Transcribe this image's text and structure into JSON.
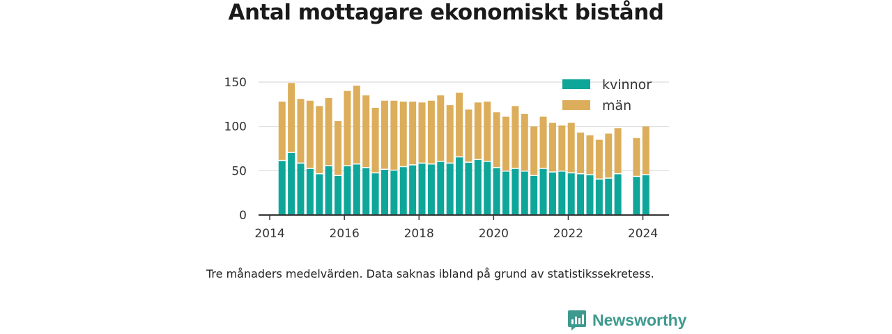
{
  "title": "Antal mottagare ekonomiskt bistånd",
  "caption": "Tre månaders medelvärden. Data saknas ibland på grund av statistikssekretess.",
  "brand": "Newsworthy",
  "colors": {
    "kvinnor": "#0fa69a",
    "man": "#dcae5b",
    "grid": "#d9d9d9",
    "axis": "#333333",
    "brand": "#3e9a8f"
  },
  "chart_data": {
    "type": "bar",
    "stacked": true,
    "x_unit": "year",
    "xlim": [
      2013.7,
      2024.7
    ],
    "ylim": [
      0,
      160
    ],
    "yticks": [
      0,
      50,
      100,
      150
    ],
    "xticks": [
      2014,
      2016,
      2018,
      2020,
      2022,
      2024
    ],
    "grid": true,
    "legend_position": "top-right",
    "x": [
      2014.33,
      2014.58,
      2014.83,
      2015.08,
      2015.33,
      2015.58,
      2015.83,
      2016.08,
      2016.33,
      2016.58,
      2016.83,
      2017.08,
      2017.33,
      2017.58,
      2017.83,
      2018.08,
      2018.33,
      2018.58,
      2018.83,
      2019.08,
      2019.33,
      2019.58,
      2019.83,
      2020.08,
      2020.33,
      2020.58,
      2020.83,
      2021.08,
      2021.33,
      2021.58,
      2021.83,
      2022.08,
      2022.33,
      2022.58,
      2022.83,
      2023.08,
      2023.33,
      2023.83,
      2024.08
    ],
    "series": [
      {
        "name": "kvinnor",
        "values": [
          61,
          70,
          58,
          52,
          46,
          55,
          44,
          55,
          57,
          53,
          47,
          51,
          50,
          54,
          56,
          58,
          57,
          60,
          58,
          65,
          59,
          62,
          60,
          53,
          49,
          52,
          49,
          44,
          52,
          48,
          49,
          47,
          46,
          45,
          40,
          41,
          46,
          43,
          45
        ]
      },
      {
        "name": "män",
        "values": [
          67,
          79,
          73,
          77,
          77,
          77,
          62,
          85,
          89,
          82,
          74,
          78,
          79,
          74,
          72,
          69,
          72,
          75,
          66,
          73,
          60,
          65,
          68,
          63,
          62,
          71,
          65,
          56,
          59,
          56,
          52,
          57,
          47,
          45,
          45,
          51,
          52,
          44,
          55
        ]
      }
    ]
  }
}
